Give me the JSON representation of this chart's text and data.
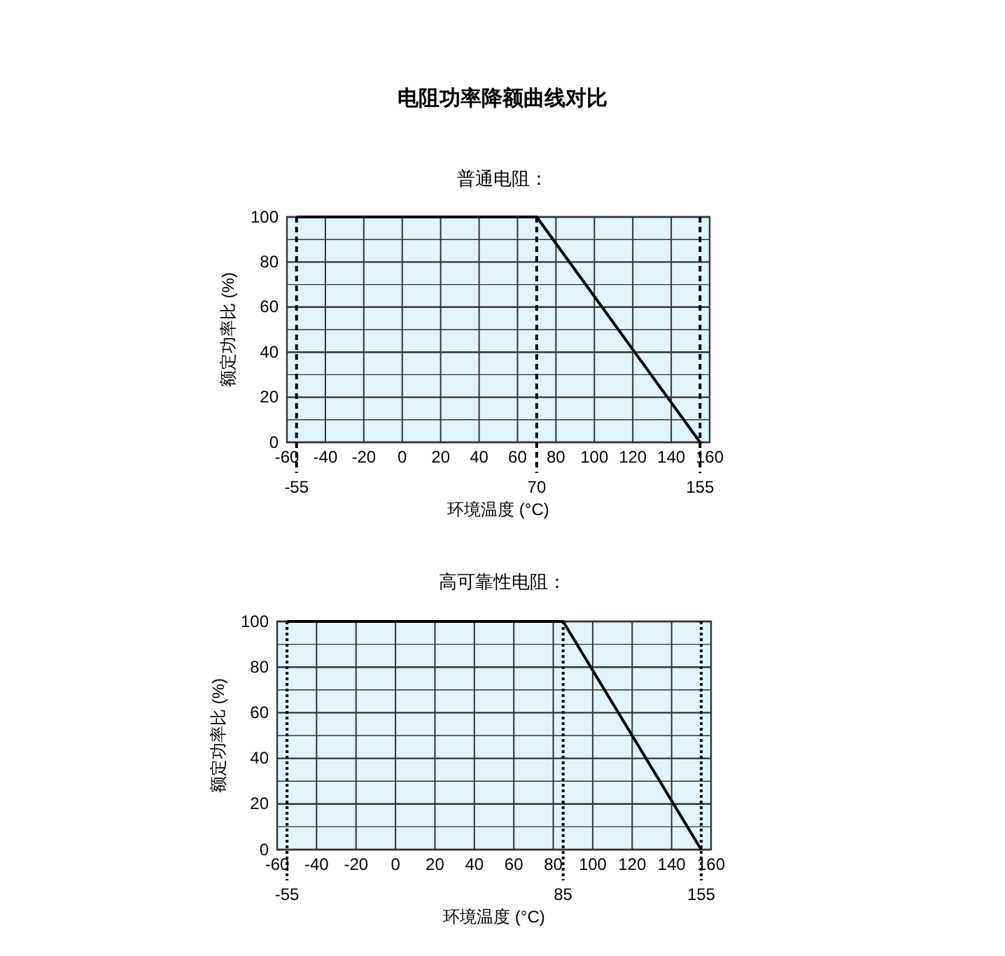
{
  "chart_data": [
    {
      "type": "line",
      "title": "电阻功率降额曲线对比",
      "subtitle": "普通电阻：",
      "xlabel": "环境温度 (°C)",
      "ylabel": "额定功率比 (%)",
      "series": [
        {
          "color": "#000000",
          "x": [
            -55,
            70,
            155
          ],
          "values": [
            100,
            100,
            0
          ]
        }
      ],
      "xlim": [
        -60,
        160
      ],
      "xticks": [
        -60,
        -40,
        -20,
        0,
        20,
        40,
        60,
        80,
        100,
        120,
        140,
        160
      ],
      "ylim": [
        0,
        100
      ],
      "yticks": [
        0,
        {
          "value": 10,
          "label": null
        },
        20,
        {
          "value": 30,
          "label": null
        },
        40,
        {
          "value": 50,
          "label": null
        },
        60,
        {
          "value": 70,
          "label": null
        },
        80,
        {
          "value": 90,
          "label": null
        },
        100
      ],
      "ref_lines": [
        {
          "axis": "x",
          "value": -55,
          "label": "-55",
          "line_style": "dashed"
        },
        {
          "axis": "x",
          "value": 70,
          "label": "70",
          "line_style": "dashed"
        },
        {
          "axis": "x",
          "value": 155,
          "label": "155",
          "line_style": "dashed"
        }
      ],
      "grid": true,
      "marker": "none",
      "line_style": "solid"
    },
    {
      "type": "line",
      "title": "高可靠性电阻：",
      "xlabel": "环境温度 (°C)",
      "ylabel": "额定功率比 (%)",
      "series": [
        {
          "color": "#000000",
          "x": [
            -55,
            85,
            155
          ],
          "values": [
            100,
            100,
            0
          ]
        }
      ],
      "xlim": [
        -60,
        160
      ],
      "xticks": [
        -60,
        -40,
        -20,
        0,
        20,
        40,
        60,
        80,
        100,
        120,
        140,
        160
      ],
      "ylim": [
        0,
        100
      ],
      "yticks": [
        0,
        {
          "value": 10,
          "label": null
        },
        20,
        {
          "value": 30,
          "label": null
        },
        40,
        {
          "value": 50,
          "label": null
        },
        60,
        {
          "value": 70,
          "label": null
        },
        80,
        {
          "value": 90,
          "label": null
        },
        100
      ],
      "ref_lines": [
        {
          "axis": "x",
          "value": -55,
          "label": "-55",
          "line_style": "dotted"
        },
        {
          "axis": "x",
          "value": 85,
          "label": "85",
          "line_style": "dotted"
        },
        {
          "axis": "x",
          "value": 155,
          "label": "155",
          "line_style": "dotted"
        }
      ],
      "grid": true,
      "marker": "none",
      "line_style": "solid"
    }
  ]
}
